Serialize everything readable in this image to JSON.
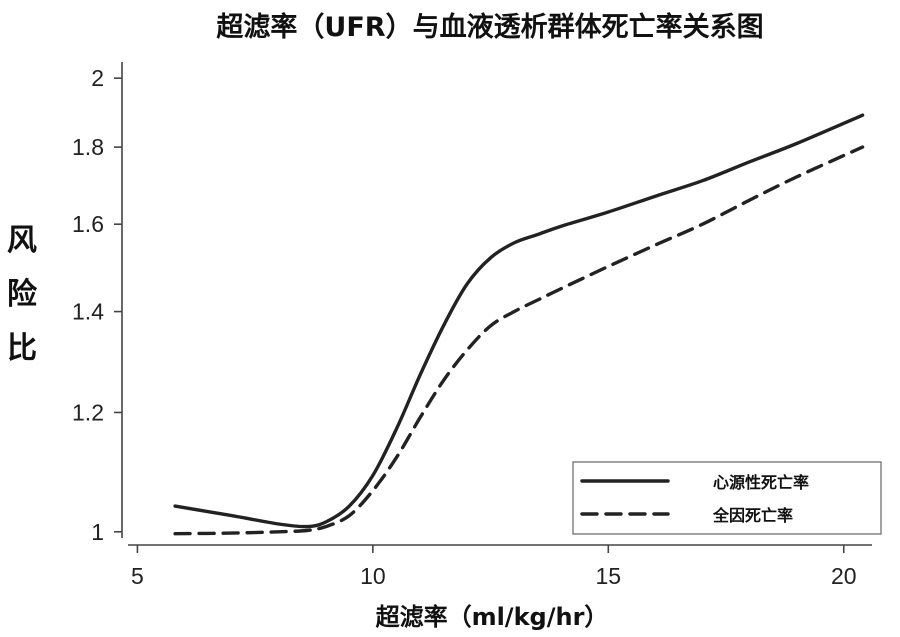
{
  "chart_data": {
    "type": "line",
    "title": "超滤率（UFR）与血液透析群体死亡率关系图",
    "xlabel": "超滤率（ml/kg/hr）",
    "ylabel": "风险比",
    "x_ticks": [
      5,
      10,
      15,
      20
    ],
    "y_ticks": [
      1,
      1.2,
      1.4,
      1.6,
      1.8,
      2
    ],
    "y_tick_labels": [
      "1",
      "1.2",
      "1.4",
      "1.6",
      "1.8",
      "2"
    ],
    "xlim": [
      4.8,
      20.6
    ],
    "ylim": [
      0.98,
      2.05
    ],
    "y_scale": "log",
    "legend_position": "bottom-right",
    "series": [
      {
        "name": "心源性死亡率",
        "style": "solid",
        "x": [
          5.8,
          7.0,
          8.0,
          8.6,
          9.0,
          9.5,
          10.0,
          10.5,
          11.0,
          11.5,
          12.0,
          12.5,
          13.0,
          13.5,
          14.0,
          15.0,
          16.0,
          17.0,
          18.0,
          19.0,
          20.4
        ],
        "y": [
          1.04,
          1.025,
          1.012,
          1.008,
          1.015,
          1.04,
          1.09,
          1.17,
          1.27,
          1.37,
          1.46,
          1.52,
          1.555,
          1.575,
          1.595,
          1.63,
          1.67,
          1.71,
          1.76,
          1.81,
          1.89
        ]
      },
      {
        "name": "全因死亡率",
        "style": "dashed",
        "x": [
          5.8,
          7.0,
          8.0,
          8.6,
          9.0,
          9.5,
          10.0,
          10.5,
          11.0,
          11.5,
          12.0,
          12.5,
          13.0,
          13.5,
          14.0,
          15.0,
          16.0,
          17.0,
          18.0,
          19.0,
          20.4
        ],
        "y": [
          0.997,
          0.998,
          1.0,
          1.002,
          1.008,
          1.025,
          1.065,
          1.12,
          1.19,
          1.26,
          1.32,
          1.37,
          1.4,
          1.425,
          1.45,
          1.5,
          1.55,
          1.6,
          1.66,
          1.72,
          1.8
        ]
      }
    ]
  }
}
